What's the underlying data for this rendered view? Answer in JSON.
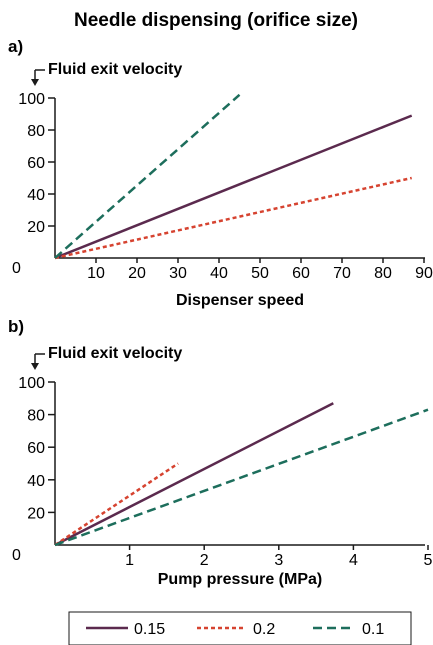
{
  "title": "Needle dispensing (orifice size)",
  "colors": {
    "0.15": "#5b2a4e",
    "0.2": "#d64330",
    "0.1": "#1d6e5c",
    "axis": "#1a1a1a"
  },
  "legend": [
    {
      "label": "0.15",
      "style": "solid",
      "color": "#5b2a4e"
    },
    {
      "label": "0.2",
      "style": "dotted",
      "color": "#d64330"
    },
    {
      "label": "0.1",
      "style": "dashed",
      "color": "#1d6e5c"
    }
  ],
  "chart_data": [
    {
      "panel_label": "a)",
      "type": "line",
      "ylabel": "Fluid exit velocity",
      "xlabel": "Dispenser speed",
      "xlim": [
        0,
        90
      ],
      "ylim": [
        0,
        100
      ],
      "xticks": [
        "10",
        "20",
        "30",
        "40",
        "50",
        "60",
        "70",
        "80",
        "90"
      ],
      "xtick_values": [
        10,
        20,
        30,
        40,
        50,
        60,
        70,
        80,
        90
      ],
      "yticks": [
        "20",
        "40",
        "60",
        "80",
        "100"
      ],
      "ytick_values": [
        20,
        40,
        60,
        80,
        100
      ],
      "origin_label": "0",
      "series": [
        {
          "name": "0.15",
          "style": "solid",
          "color": "#5b2a4e",
          "x": [
            0,
            87
          ],
          "y": [
            0,
            89
          ]
        },
        {
          "name": "0.2",
          "style": "dotted",
          "color": "#d64330",
          "x": [
            0,
            87
          ],
          "y": [
            0,
            50
          ]
        },
        {
          "name": "0.1",
          "style": "dashed",
          "color": "#1d6e5c",
          "x": [
            0,
            45
          ],
          "y": [
            0,
            102
          ]
        }
      ]
    },
    {
      "panel_label": "b)",
      "type": "line",
      "ylabel": "Fluid exit velocity",
      "xlabel": "Pump pressure (MPa)",
      "xlim": [
        0,
        5
      ],
      "ylim": [
        0,
        100
      ],
      "xticks": [
        "1",
        "2",
        "3",
        "4",
        "5"
      ],
      "xtick_values": [
        1,
        2,
        3,
        4,
        5
      ],
      "yticks": [
        "20",
        "40",
        "60",
        "80",
        "100"
      ],
      "ytick_values": [
        20,
        40,
        60,
        80,
        100
      ],
      "origin_label": "0",
      "series": [
        {
          "name": "0.15",
          "style": "solid",
          "color": "#5b2a4e",
          "x": [
            0,
            3.73
          ],
          "y": [
            0,
            87
          ]
        },
        {
          "name": "0.2",
          "style": "dotted",
          "color": "#d64330",
          "x": [
            0,
            1.65
          ],
          "y": [
            0,
            50
          ]
        },
        {
          "name": "0.1",
          "style": "dashed",
          "color": "#1d6e5c",
          "x": [
            0,
            5.0
          ],
          "y": [
            0,
            83
          ]
        }
      ]
    }
  ]
}
